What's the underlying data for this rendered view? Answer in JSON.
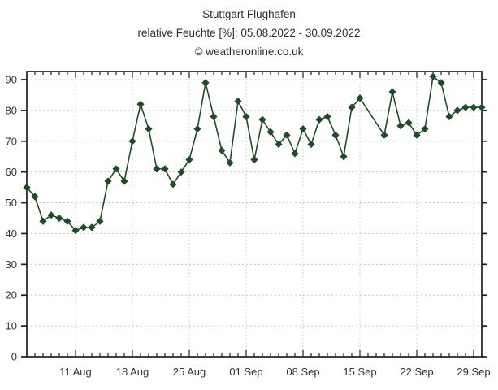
{
  "header": {
    "title": "Stuttgart Flughafen",
    "subtitle": "relative Feuchte [%]: 05.08.2022 - 30.09.2022",
    "watermark": "© weatheronline.co.uk"
  },
  "chart_data": {
    "type": "line",
    "title": "Stuttgart Flughafen",
    "subtitle": "relative Feuchte [%]: 05.08.2022 - 30.09.2022",
    "series_name": "relative Feuchte [%]",
    "station": "Stuttgart Flughafen",
    "date_range": "05.08.2022 - 30.09.2022",
    "xlabel": "",
    "ylabel": "relative Feuchte [%]",
    "ylim": [
      0,
      92.5
    ],
    "grid": true,
    "legend": "none",
    "line_color": "#1d4d26",
    "marker": "diamond",
    "y_ticks": [
      0,
      10,
      20,
      30,
      40,
      50,
      60,
      70,
      80,
      90
    ],
    "x_major_ticks": [
      {
        "day_index": 6,
        "label": "11 Aug"
      },
      {
        "day_index": 13,
        "label": "18 Aug"
      },
      {
        "day_index": 20,
        "label": "25 Aug"
      },
      {
        "day_index": 27,
        "label": "01 Sep"
      },
      {
        "day_index": 34,
        "label": "08 Sep"
      },
      {
        "day_index": 41,
        "label": "15 Sep"
      },
      {
        "day_index": 48,
        "label": "22 Sep"
      },
      {
        "day_index": 55,
        "label": "29 Sep"
      }
    ],
    "dates": [
      "05.08.2022",
      "06.08.2022",
      "07.08.2022",
      "08.08.2022",
      "09.08.2022",
      "10.08.2022",
      "11.08.2022",
      "12.08.2022",
      "13.08.2022",
      "14.08.2022",
      "15.08.2022",
      "16.08.2022",
      "17.08.2022",
      "18.08.2022",
      "19.08.2022",
      "20.08.2022",
      "21.08.2022",
      "22.08.2022",
      "23.08.2022",
      "24.08.2022",
      "25.08.2022",
      "26.08.2022",
      "27.08.2022",
      "28.08.2022",
      "29.08.2022",
      "30.08.2022",
      "31.08.2022",
      "01.09.2022",
      "02.09.2022",
      "03.09.2022",
      "04.09.2022",
      "05.09.2022",
      "06.09.2022",
      "07.09.2022",
      "08.09.2022",
      "09.09.2022",
      "10.09.2022",
      "11.09.2022",
      "12.09.2022",
      "13.09.2022",
      "14.09.2022",
      "15.09.2022",
      "16.09.2022",
      "17.09.2022",
      "18.09.2022",
      "19.09.2022",
      "20.09.2022",
      "21.09.2022",
      "22.09.2022",
      "23.09.2022",
      "24.09.2022",
      "25.09.2022",
      "26.09.2022",
      "27.09.2022",
      "28.09.2022",
      "29.09.2022",
      "30.09.2022"
    ],
    "values": [
      55,
      52,
      44,
      46,
      45,
      44,
      41,
      42,
      42,
      44,
      57,
      61,
      57,
      70,
      82,
      74,
      61,
      61,
      56,
      60,
      64,
      74,
      89,
      78,
      67,
      63,
      83,
      78,
      64,
      77,
      73,
      69,
      72,
      66,
      74,
      69,
      77,
      78,
      72,
      65,
      81,
      84,
      null,
      null,
      72,
      86,
      75,
      76,
      72,
      74,
      91,
      89,
      78,
      80,
      81,
      81,
      81
    ]
  }
}
